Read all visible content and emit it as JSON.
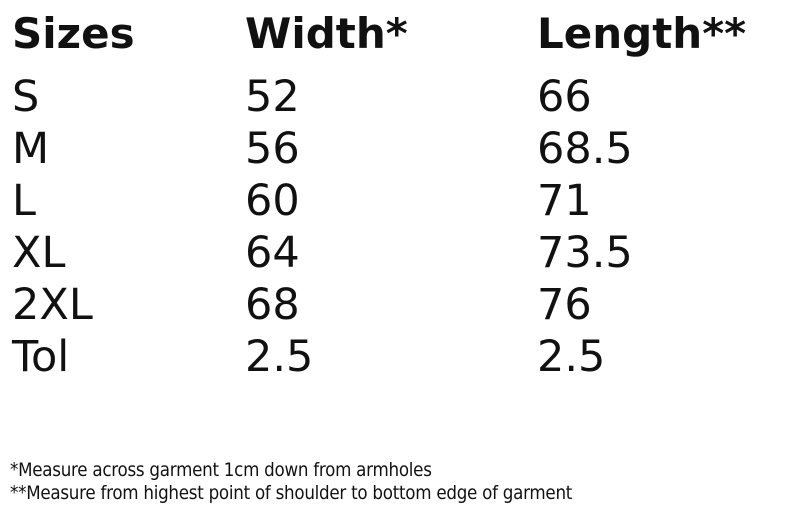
{
  "table": {
    "headers": [
      "Sizes",
      "Width*",
      "Length**"
    ],
    "rows": [
      [
        "S",
        "52",
        "66"
      ],
      [
        "M",
        "56",
        "68.5"
      ],
      [
        "L",
        "60",
        "71"
      ],
      [
        "XL",
        "64",
        "73.5"
      ],
      [
        "2XL",
        "68",
        "76"
      ],
      [
        "Tol",
        "2.5",
        "2.5"
      ]
    ]
  },
  "notes": [
    "*Measure across garment 1cm down from armholes",
    "**Measure from highest point of shoulder to bottom edge of garment"
  ]
}
